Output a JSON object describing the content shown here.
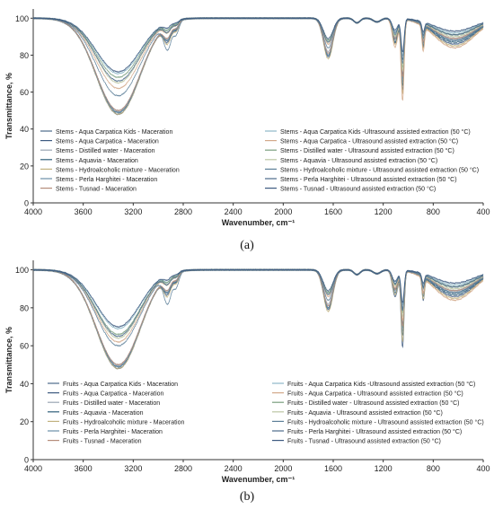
{
  "figure": {
    "caption_a": "(a)",
    "caption_b": "(b)"
  },
  "colors": {
    "line_palette": [
      "#4d6b8a",
      "#3d5a80",
      "#9aa6b2",
      "#2f5f7a",
      "#c2b280",
      "#6c8fa8",
      "#b58c7a",
      "#8eb8c8",
      "#d3a98a",
      "#7a9e7e",
      "#bcc6a4",
      "#5d7f99"
    ]
  },
  "chart_data": [
    {
      "id": "a",
      "type": "line",
      "xlabel": "Wavenumber, cm⁻¹",
      "ylabel": "Transmittance, %",
      "xlim": [
        4000,
        400
      ],
      "ylim": [
        0,
        105
      ],
      "xticks": [
        4000,
        3600,
        3200,
        2800,
        2400,
        2000,
        1600,
        1200,
        800,
        400
      ],
      "yticks": [
        0,
        20,
        40,
        60,
        80,
        100
      ],
      "grid": false,
      "legend_position": "center",
      "series": [
        {
          "name": "Stems - Aqua Carpatica Kids - Maceration",
          "ohmin": 49,
          "ch": 92,
          "amide": 80,
          "co": 70,
          "low": 88
        },
        {
          "name": "Stems - Aqua Carpatica - Maceration",
          "ohmin": 48,
          "ch": 91,
          "amide": 79,
          "co": 62,
          "low": 86
        },
        {
          "name": "Stems - Distilled water - Maceration",
          "ohmin": 50,
          "ch": 93,
          "amide": 82,
          "co": 66,
          "low": 89
        },
        {
          "name": "Stems - Aquavia - Maceration",
          "ohmin": 49,
          "ch": 92,
          "amide": 80,
          "co": 64,
          "low": 87
        },
        {
          "name": "Stems - Hydroalcoholic mixture - Maceration",
          "ohmin": 48,
          "ch": 90,
          "amide": 78,
          "co": 60,
          "low": 85
        },
        {
          "name": "Stems - Perla Harghitei - Maceration",
          "ohmin": 49,
          "ch": 92,
          "amide": 80,
          "co": 68,
          "low": 88
        },
        {
          "name": "Stems - Tusnad - Maceration",
          "ohmin": 50,
          "ch": 93,
          "amide": 81,
          "co": 69,
          "low": 89
        },
        {
          "name": "Stems - Aqua Carpatica Kids -Ultrasound assisted extraction (50 °C)",
          "ohmin": 70,
          "ch": 96,
          "amide": 88,
          "co": 80,
          "low": 92
        },
        {
          "name": "Stems - Aqua Carpatica - Ultrasound assisted extraction (50 °C)",
          "ohmin": 62,
          "ch": 95,
          "amide": 86,
          "co": 56,
          "low": 84
        },
        {
          "name": "Stems - Distilled water - Ultrasound assisted extraction (50 °C)",
          "ohmin": 68,
          "ch": 96,
          "amide": 88,
          "co": 74,
          "low": 91
        },
        {
          "name": "Stems - Aquavia - Ultrasound assisted extraction (50 °C)",
          "ohmin": 65,
          "ch": 95,
          "amide": 87,
          "co": 72,
          "low": 90
        },
        {
          "name": "Stems - Hydroalcoholic mixture - Ultrasound assisted extraction (50 °C)",
          "ohmin": 58,
          "ch": 86,
          "amide": 84,
          "co": 76,
          "low": 88
        },
        {
          "name": "Stems - Perla Harghitei - Ultrasound assisted extraction (50 °C)",
          "ohmin": 66,
          "ch": 95,
          "amide": 87,
          "co": 78,
          "low": 91
        },
        {
          "name": "Stems - Tusnad - Ultrasound assisted extraction (50 °C)",
          "ohmin": 71,
          "ch": 97,
          "amide": 89,
          "co": 82,
          "low": 93
        }
      ]
    },
    {
      "id": "b",
      "type": "line",
      "xlabel": "Wavenumber, cm⁻¹",
      "ylabel": "Transmittance, %",
      "xlim": [
        4000,
        400
      ],
      "ylim": [
        0,
        105
      ],
      "xticks": [
        4000,
        3600,
        3200,
        2800,
        2400,
        2000,
        1600,
        1200,
        800,
        400
      ],
      "yticks": [
        0,
        20,
        40,
        60,
        80,
        100
      ],
      "grid": false,
      "legend_position": "center",
      "series": [
        {
          "name": "Fruits - Aqua Carpatica Kids - Maceration",
          "ohmin": 49,
          "ch": 92,
          "amide": 80,
          "co": 72,
          "low": 88
        },
        {
          "name": "Fruits - Aqua Carpatica - Maceration",
          "ohmin": 48,
          "ch": 91,
          "amide": 79,
          "co": 60,
          "low": 86
        },
        {
          "name": "Fruits - Distilled water - Maceration",
          "ohmin": 50,
          "ch": 93,
          "amide": 82,
          "co": 68,
          "low": 89
        },
        {
          "name": "Fruits - Aquavia - Maceration",
          "ohmin": 49,
          "ch": 92,
          "amide": 80,
          "co": 66,
          "low": 87
        },
        {
          "name": "Fruits - Hydroalcoholic mixture - Maceration",
          "ohmin": 48,
          "ch": 90,
          "amide": 78,
          "co": 63,
          "low": 85
        },
        {
          "name": "Fruits - Perla Harghitei - Maceration",
          "ohmin": 49,
          "ch": 92,
          "amide": 80,
          "co": 70,
          "low": 88
        },
        {
          "name": "Fruits - Tusnad - Maceration",
          "ohmin": 50,
          "ch": 93,
          "amide": 81,
          "co": 71,
          "low": 89
        },
        {
          "name": "Fruits - Aqua Carpatica Kids -Ultrasound assisted extraction (50 °C)",
          "ohmin": 69,
          "ch": 96,
          "amide": 88,
          "co": 82,
          "low": 92
        },
        {
          "name": "Fruits - Aqua Carpatica - Ultrasound assisted extraction (50 °C)",
          "ohmin": 62,
          "ch": 95,
          "amide": 86,
          "co": 74,
          "low": 84
        },
        {
          "name": "Fruits - Distilled water - Ultrasound assisted extraction (50 °C)",
          "ohmin": 66,
          "ch": 96,
          "amide": 88,
          "co": 78,
          "low": 91
        },
        {
          "name": "Fruits - Aquavia - Ultrasound assisted extraction (50 °C)",
          "ohmin": 64,
          "ch": 95,
          "amide": 87,
          "co": 76,
          "low": 90
        },
        {
          "name": "Fruits - Hydroalcoholic mixture - Ultrasound assisted extraction (50 °C)",
          "ohmin": 60,
          "ch": 85,
          "amide": 84,
          "co": 80,
          "low": 88
        },
        {
          "name": "Fruits - Perla Harghitei - Ultrasound assisted extraction (50 °C)",
          "ohmin": 65,
          "ch": 95,
          "amide": 87,
          "co": 79,
          "low": 91
        },
        {
          "name": "Fruits - Tusnad - Ultrasound assisted extraction (50 °C)",
          "ohmin": 70,
          "ch": 97,
          "amide": 89,
          "co": 83,
          "low": 93
        }
      ]
    }
  ]
}
